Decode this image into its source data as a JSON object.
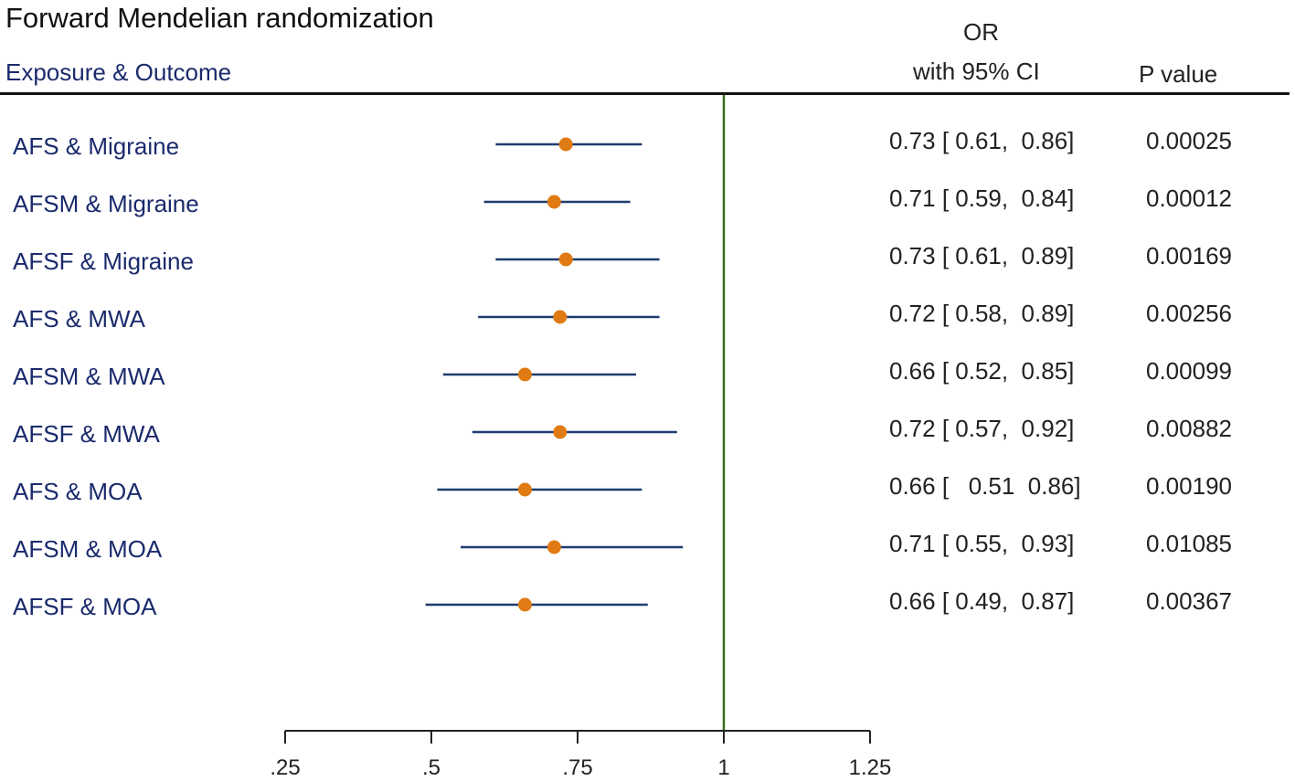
{
  "header": {
    "title": "Forward Mendelian randomization",
    "exposure_outcome": "Exposure & Outcome",
    "or_line1": "OR",
    "or_line2": "with 95% CI",
    "p_value": "P value"
  },
  "colors": {
    "label_text": "#1a2a6c",
    "ci_line": "#1f3b6e",
    "point": "#e07a12",
    "reference_line": "#3b6e1f",
    "axis": "#222222"
  },
  "chart_data": {
    "type": "forest",
    "title": "Forward Mendelian randomization",
    "xlabel": "",
    "reference_value": 1,
    "xlim": [
      0.25,
      1.25
    ],
    "xticks": [
      0.25,
      0.5,
      0.75,
      1,
      1.25
    ],
    "xtick_labels": [
      ".25",
      ".5",
      ".75",
      "1",
      "1.25"
    ],
    "rows": [
      {
        "label": "AFS & Migraine",
        "or": 0.73,
        "lo": 0.61,
        "hi": 0.86,
        "or_text": "0.73 [ 0.61,  0.86]",
        "p": "0.00025"
      },
      {
        "label": "AFSM & Migraine",
        "or": 0.71,
        "lo": 0.59,
        "hi": 0.84,
        "or_text": "0.71 [ 0.59,  0.84]",
        "p": "0.00012"
      },
      {
        "label": "AFSF & Migraine",
        "or": 0.73,
        "lo": 0.61,
        "hi": 0.89,
        "or_text": "0.73 [ 0.61,  0.89]",
        "p": "0.00169"
      },
      {
        "label": "AFS & MWA",
        "or": 0.72,
        "lo": 0.58,
        "hi": 0.89,
        "or_text": "0.72 [ 0.58,  0.89]",
        "p": "0.00256"
      },
      {
        "label": "AFSM & MWA",
        "or": 0.66,
        "lo": 0.52,
        "hi": 0.85,
        "or_text": "0.66 [ 0.52,  0.85]",
        "p": "0.00099"
      },
      {
        "label": "AFSF & MWA",
        "or": 0.72,
        "lo": 0.57,
        "hi": 0.92,
        "or_text": "0.72 [ 0.57,  0.92]",
        "p": "0.00882"
      },
      {
        "label": "AFS & MOA",
        "or": 0.66,
        "lo": 0.51,
        "hi": 0.86,
        "or_text": "0.66 [   0.51  0.86]",
        "p": "0.00190"
      },
      {
        "label": "AFSM & MOA",
        "or": 0.71,
        "lo": 0.55,
        "hi": 0.93,
        "or_text": "0.71 [ 0.55,  0.93]",
        "p": "0.01085"
      },
      {
        "label": "AFSF & MOA",
        "or": 0.66,
        "lo": 0.49,
        "hi": 0.87,
        "or_text": "0.66 [ 0.49,  0.87]",
        "p": "0.00367"
      }
    ]
  }
}
